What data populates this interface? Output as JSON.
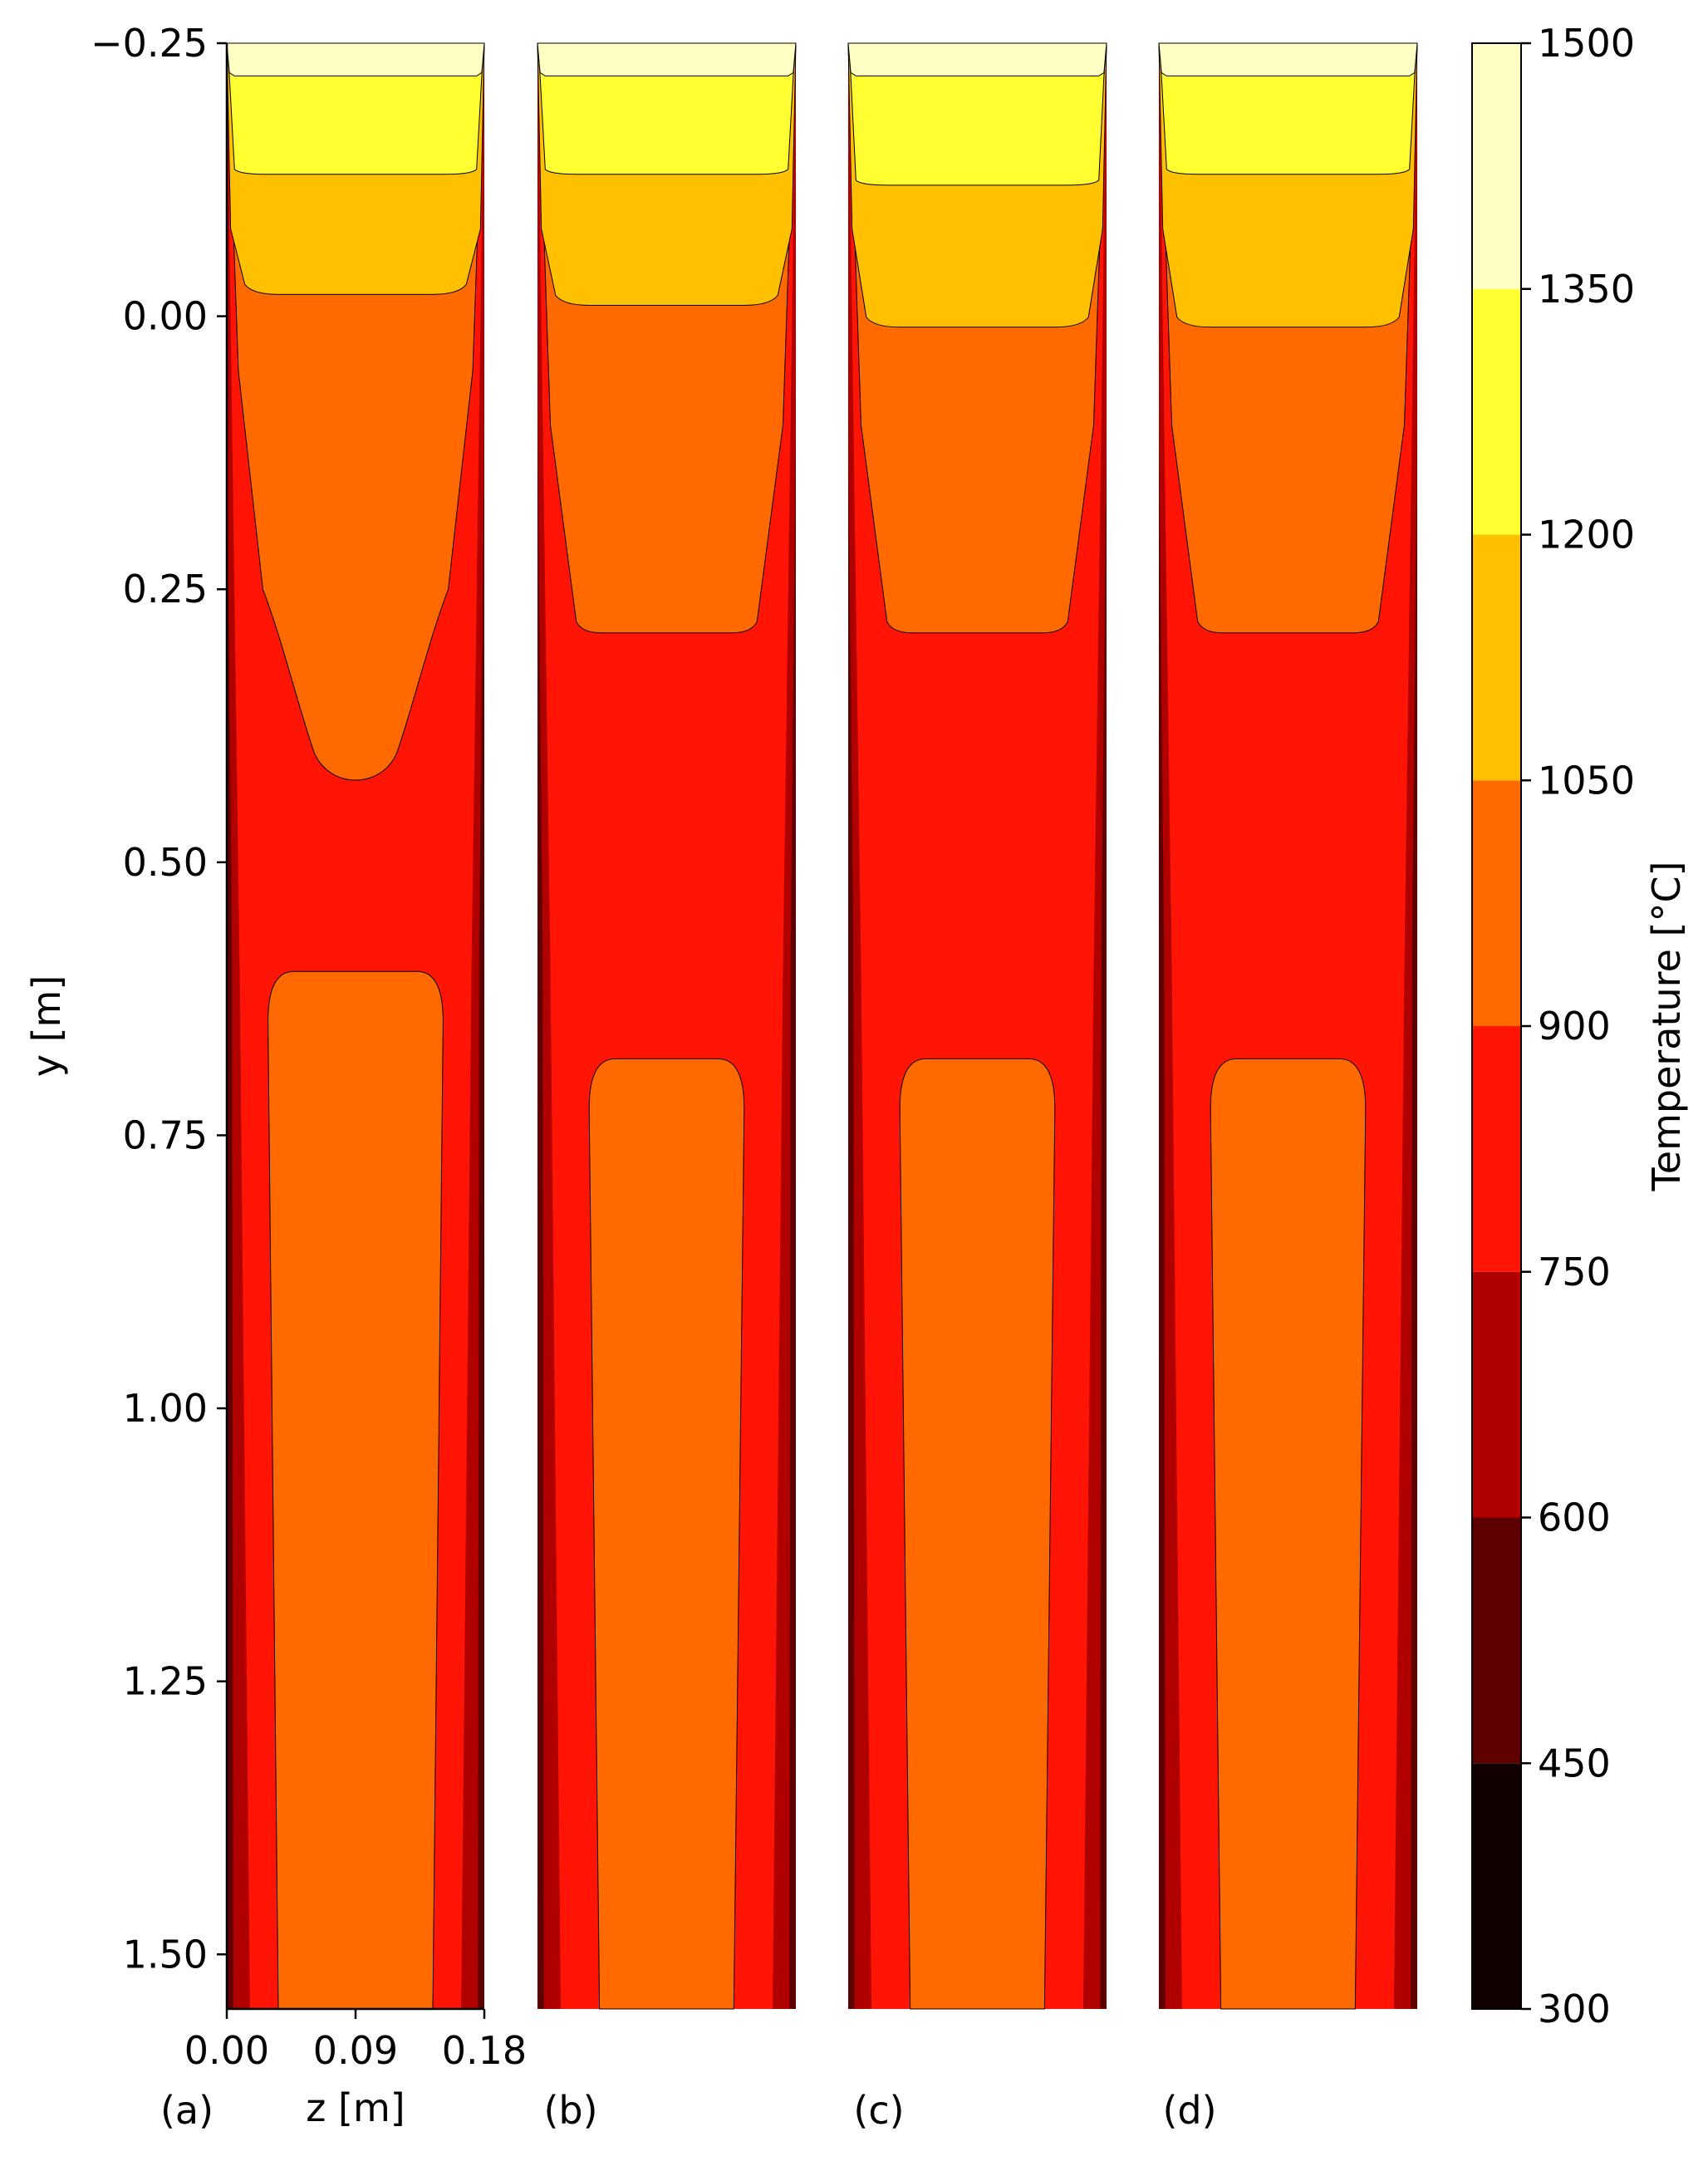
{
  "chart_data": {
    "type": "heatmap",
    "subtype": "filled-contour",
    "panels": [
      {
        "label": "(a)",
        "bands": [
          {
            "t": 1350,
            "y": -0.13
          },
          {
            "t": 1200,
            "y": -0.02
          },
          {
            "t": 1050,
            "y": 0.0
          },
          {
            "t": 900,
            "y": 0.43,
            "neck": true
          },
          {
            "t": 1050,
            "y": 0.6,
            "lower": true
          },
          {
            "t": 750,
            "y": 1.55
          }
        ]
      },
      {
        "label": "(b)",
        "bands": [
          {
            "t": 1350,
            "y": -0.13
          },
          {
            "t": 1200,
            "y": -0.01
          },
          {
            "t": 1050,
            "y": 0.29
          },
          {
            "t": 900,
            "y": 0.68
          },
          {
            "t": 1050,
            "y": 0.68,
            "lower": true
          }
        ]
      },
      {
        "label": "(c)",
        "bands": [
          {
            "t": 1350,
            "y": -0.12
          },
          {
            "t": 1200,
            "y": 0.01
          },
          {
            "t": 1050,
            "y": 0.29
          },
          {
            "t": 1050,
            "y": 0.68,
            "lower": true
          }
        ]
      },
      {
        "label": "(d)",
        "bands": [
          {
            "t": 1350,
            "y": -0.13
          },
          {
            "t": 1200,
            "y": 0.01
          },
          {
            "t": 1050,
            "y": 0.29
          },
          {
            "t": 1050,
            "y": 0.68,
            "lower": true
          }
        ]
      }
    ],
    "x_axis": {
      "label": "z [m]",
      "range": [
        0.0,
        0.18
      ],
      "ticks": [
        "0.00",
        "0.09",
        "0.18"
      ]
    },
    "y_axis": {
      "label": "y [m]",
      "range": [
        -0.25,
        1.55
      ],
      "inverted": true,
      "ticks": [
        "−0.25",
        "0.00",
        "0.25",
        "0.50",
        "0.75",
        "1.00",
        "1.25",
        "1.50"
      ]
    },
    "colorbar": {
      "label": "Temperature [°C]",
      "levels": [
        300,
        450,
        600,
        750,
        900,
        1050,
        1200,
        1350,
        1500
      ],
      "tick_labels": [
        "300",
        "450",
        "600",
        "750",
        "900",
        "1050",
        "1200",
        "1350",
        "1500"
      ],
      "colors": [
        "#120000",
        "#5e0000",
        "#b00000",
        "#ff1406",
        "#ff6a00",
        "#ffc000",
        "#ffff32",
        "#ffffc4"
      ],
      "colormap": "hot"
    }
  }
}
